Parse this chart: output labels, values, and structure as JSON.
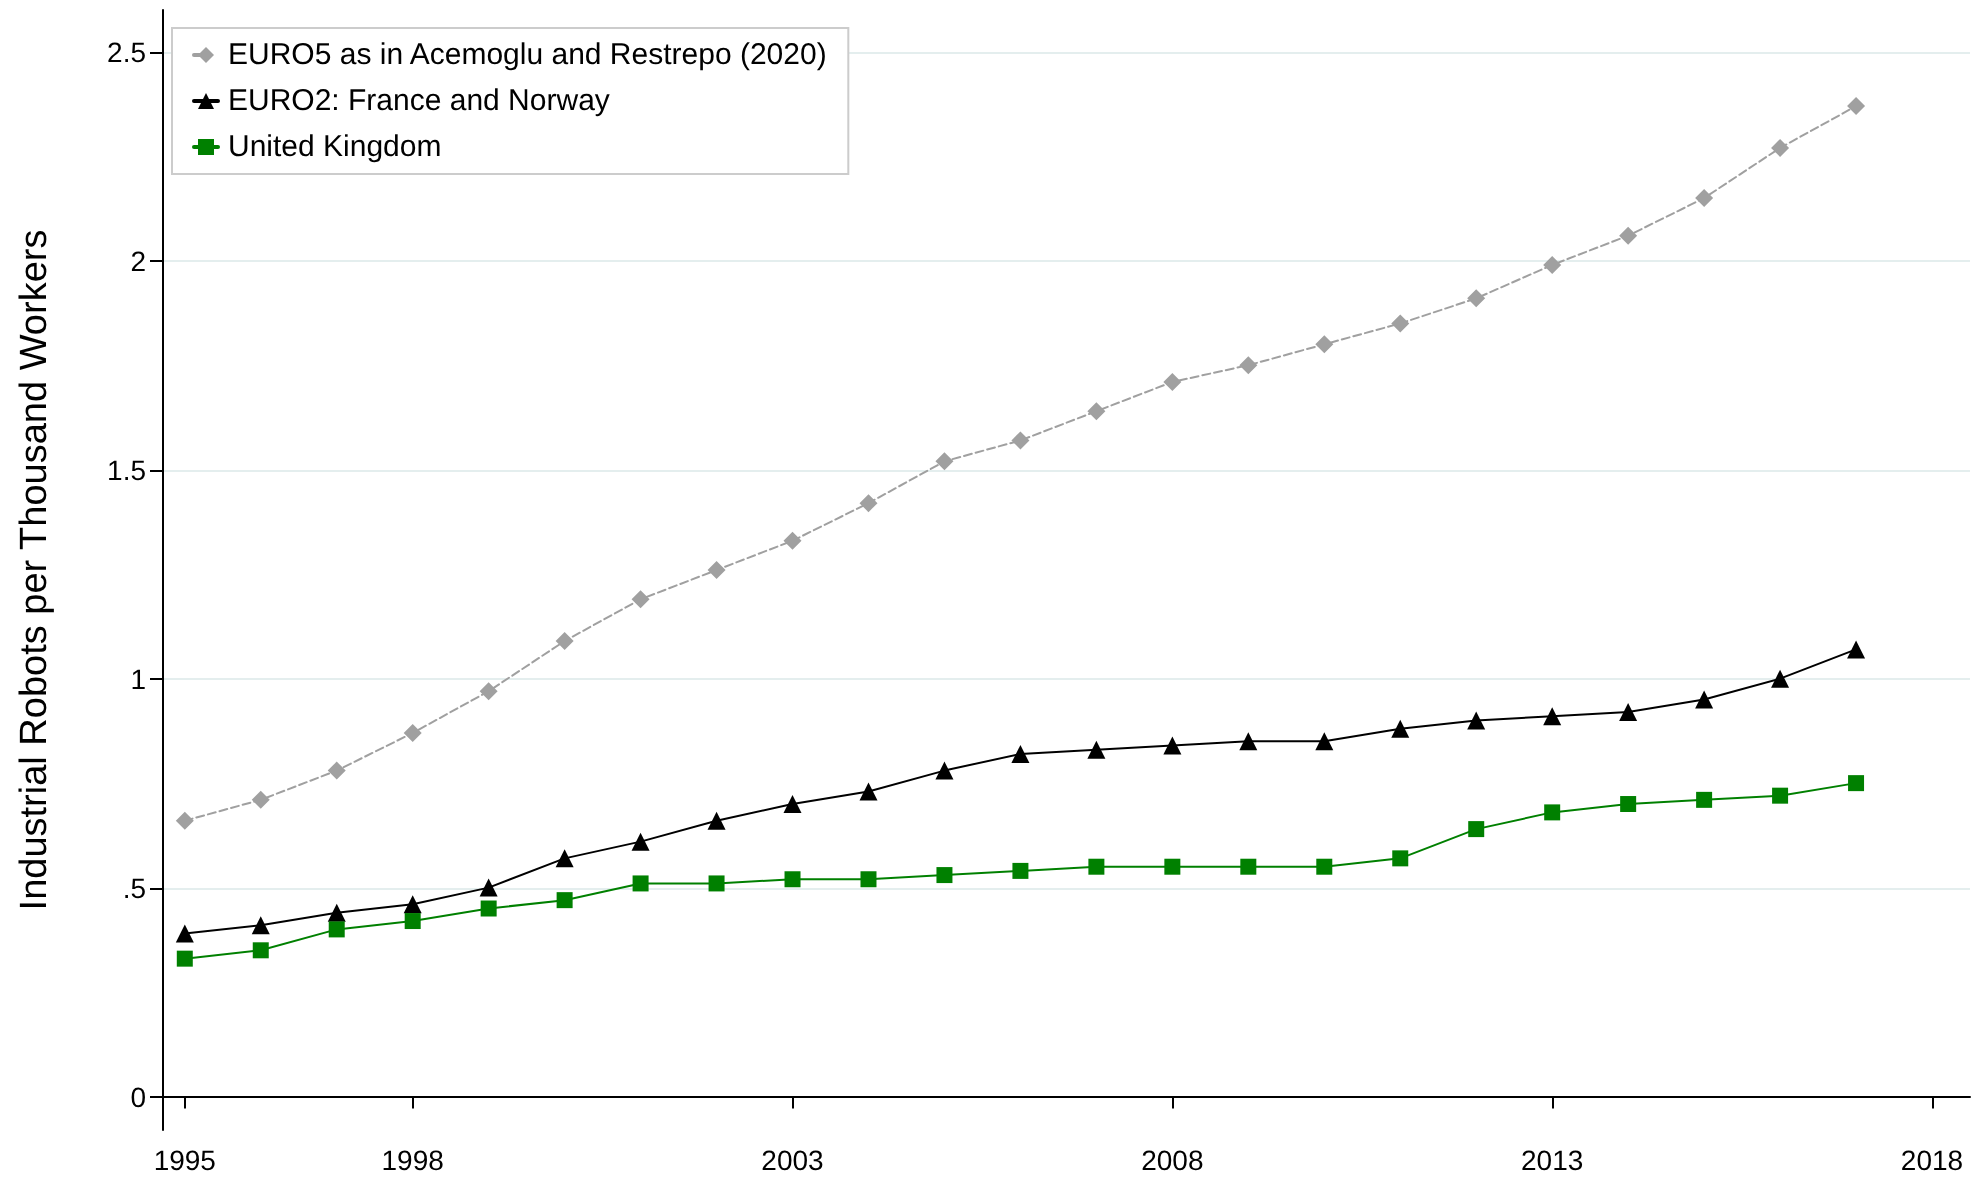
{
  "chart_data": {
    "type": "line",
    "ylabel": "Industrial Robots per Thousand Workers",
    "x": [
      1995,
      1996,
      1997,
      1998,
      1999,
      2000,
      2001,
      2002,
      2003,
      2004,
      2005,
      2006,
      2007,
      2008,
      2009,
      2010,
      2011,
      2012,
      2013,
      2014,
      2015,
      2016,
      2017
    ],
    "series": [
      {
        "name": "EURO5 as in Acemoglu and Restrepo (2020)",
        "color": "#a0a0a0",
        "marker": "diamond",
        "line_style": "dashed",
        "values": [
          0.66,
          0.71,
          0.78,
          0.87,
          0.97,
          1.09,
          1.19,
          1.26,
          1.33,
          1.42,
          1.52,
          1.57,
          1.64,
          1.71,
          1.75,
          1.8,
          1.85,
          1.91,
          1.99,
          2.06,
          2.15,
          2.27,
          2.37
        ]
      },
      {
        "name": "EURO2: France and Norway",
        "color": "#000000",
        "marker": "triangle",
        "line_style": "solid",
        "values": [
          0.39,
          0.41,
          0.44,
          0.46,
          0.5,
          0.57,
          0.61,
          0.66,
          0.7,
          0.73,
          0.78,
          0.82,
          0.83,
          0.84,
          0.85,
          0.85,
          0.88,
          0.9,
          0.91,
          0.92,
          0.95,
          1.0,
          1.07
        ]
      },
      {
        "name": "United Kingdom",
        "color": "#008000",
        "marker": "square",
        "line_style": "solid",
        "values": [
          0.33,
          0.35,
          0.4,
          0.42,
          0.45,
          0.47,
          0.51,
          0.51,
          0.52,
          0.52,
          0.53,
          0.54,
          0.55,
          0.55,
          0.55,
          0.55,
          0.57,
          0.64,
          0.68,
          0.7,
          0.71,
          0.72,
          0.75
        ]
      }
    ],
    "xlim": [
      1994.7,
      2018.5
    ],
    "xticks": [
      1995,
      1998,
      2003,
      2008,
      2013,
      2018
    ],
    "ylim": [
      -0.08,
      2.6
    ],
    "yticks": [
      0,
      {
        "value": 0.5,
        "label": ".5"
      },
      1,
      1.5,
      2,
      2.5
    ],
    "grid": "y",
    "legend": "top left"
  }
}
